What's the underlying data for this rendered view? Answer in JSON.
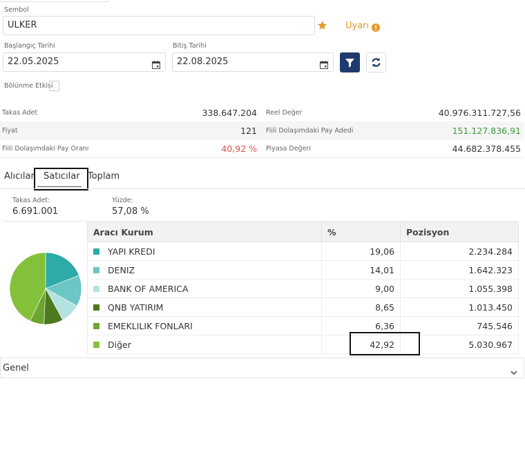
{
  "form": {
    "symbol_label": "Sembol",
    "symbol_value": "ULKER",
    "warning_label": "Uyarı",
    "start_label": "Başlangıç Tarihi",
    "start_value": "22.05.2025",
    "end_label": "Bitiş Tarihi",
    "end_value": "22.08.2025",
    "split_label": "Bölünme Etkisi"
  },
  "stats": {
    "takas_adet_label": "Takas Adet",
    "takas_adet_value": "338.647.204",
    "reel_deger_label": "Reel Değer",
    "reel_deger_value": "40.976.311.727,56",
    "fiyat_label": "Fiyat",
    "fiyat_value": "121",
    "fiili_pay_adedi_label": "Fiili Dolaşımdaki Pay Adedi",
    "fiili_pay_adedi_value": "151.127.836,91",
    "fiili_pay_orani_label": "Fiili Dolaşımdaki Pay Oranı",
    "fiili_pay_orani_value": "40,92 %",
    "piyasa_degeri_label": "Piyasa Değeri",
    "piyasa_degeri_value": "44.682.378.455"
  },
  "tabs": [
    {
      "label": "Alıcılar"
    },
    {
      "label": "Satıcılar",
      "active": true
    },
    {
      "label": "Toplam"
    }
  ],
  "summary": {
    "takas_label": "Takas Adet:",
    "takas_value": "6.691.001",
    "yuzde_label": "Yüzde:",
    "yuzde_value": "57,08 %"
  },
  "table": {
    "headers": [
      "Aracı Kurum",
      "%",
      "Pozisyon"
    ],
    "rows": [
      {
        "name": "YAPI KREDI",
        "pct": "19,06",
        "pos": "2.234.284"
      },
      {
        "name": "DENIZ",
        "pct": "14,01",
        "pos": "1.642.323"
      },
      {
        "name": "BANK OF AMERICA",
        "pct": "9,00",
        "pos": "1.055.398"
      },
      {
        "name": "QNB YATIRIM",
        "pct": "8,65",
        "pos": "1.013.450"
      },
      {
        "name": "EMEKLILIK FONLARI",
        "pct": "6,36",
        "pos": "745.546"
      },
      {
        "name": "Diğer",
        "pct": "42,92",
        "pos": "5.030.967"
      }
    ]
  },
  "chart_data": {
    "type": "pie",
    "categories": [
      "YAPI KREDI",
      "DENIZ",
      "BANK OF AMERICA",
      "QNB YATIRIM",
      "EMEKLILIK FONLARI",
      "Diğer"
    ],
    "values": [
      19.06,
      14.01,
      9.0,
      8.65,
      6.36,
      42.92
    ],
    "colors": [
      "#2eaaa8",
      "#6cc6c4",
      "#b4e2e1",
      "#4d7a1f",
      "#6ca530",
      "#84c13a"
    ]
  },
  "accordion": {
    "label": "Genel"
  },
  "colors": {
    "accent_orange": "#e8962a",
    "positive_green": "#3a9a3a",
    "negative_red": "#d9534f",
    "filter_button": "#1e3a6e"
  },
  "icons": [
    "star-icon",
    "info-icon",
    "calendar-icon",
    "filter-icon",
    "refresh-icon",
    "chevron-down-icon"
  ]
}
